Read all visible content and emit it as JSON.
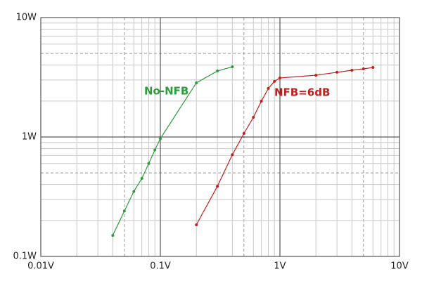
{
  "chart_data": {
    "type": "line",
    "xscale": "log",
    "yscale": "log",
    "grid": true,
    "xlim": [
      0.01,
      10
    ],
    "ylim": [
      0.1,
      10
    ],
    "xticks": [
      {
        "value": 0.01,
        "label": "0.01V"
      },
      {
        "value": 0.1,
        "label": "0.1V"
      },
      {
        "value": 1,
        "label": "1V"
      },
      {
        "value": 10,
        "label": "10V"
      }
    ],
    "yticks": [
      {
        "value": 0.1,
        "label": "0.1W"
      },
      {
        "value": 1,
        "label": "1W"
      },
      {
        "value": 10,
        "label": "10W"
      }
    ],
    "series": [
      {
        "name": "No-NFB",
        "color": "#2e9a3a",
        "x": [
          0.04,
          0.05,
          0.06,
          0.07,
          0.08,
          0.09,
          0.1,
          0.2,
          0.3,
          0.4
        ],
        "values": [
          0.15,
          0.24,
          0.35,
          0.45,
          0.6,
          0.78,
          0.97,
          2.84,
          3.57,
          3.87
        ]
      },
      {
        "name": "NFB=6dB",
        "color": "#c0201e",
        "x": [
          0.2,
          0.3,
          0.4,
          0.5,
          0.6,
          0.7,
          0.8,
          0.9,
          1,
          2,
          3,
          4,
          5,
          6
        ],
        "values": [
          0.184,
          0.387,
          0.71,
          1.07,
          1.46,
          2.0,
          2.55,
          2.92,
          3.12,
          3.29,
          3.48,
          3.62,
          3.72,
          3.82
        ]
      }
    ]
  }
}
